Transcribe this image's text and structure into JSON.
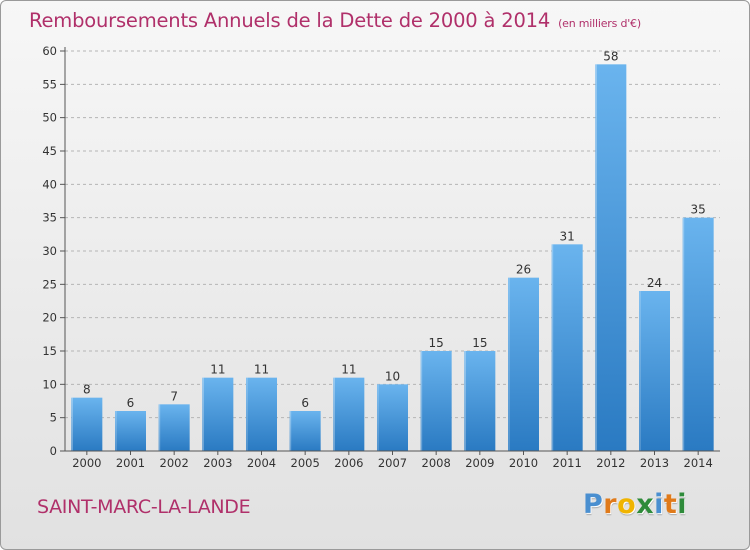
{
  "title": "Remboursements Annuels de la Dette de 2000 à 2014",
  "subtitle": "(en milliers d'€)",
  "commune": "SAINT-MARC-LA-LANDE",
  "logo": {
    "letters": [
      {
        "char": "P",
        "color": "#4a8fd0"
      },
      {
        "char": "r",
        "color": "#e07a1a"
      },
      {
        "char": "o",
        "color": "#f0b400"
      },
      {
        "char": "x",
        "color": "#2e8b3a"
      },
      {
        "char": "i",
        "color": "#4a8fd0"
      },
      {
        "char": "t",
        "color": "#e07a1a"
      },
      {
        "char": "i",
        "color": "#2e8b3a"
      }
    ]
  },
  "colors": {
    "title": "#b0306a",
    "bar_top": "#6ab4ee",
    "bar_bottom": "#2a7ac2",
    "grid": "#b5b5b5",
    "axis": "#555555"
  },
  "chart_data": {
    "type": "bar",
    "title": "Remboursements Annuels de la Dette de 2000 à 2014",
    "subtitle": "(en milliers d'€)",
    "categories": [
      "2000",
      "2001",
      "2002",
      "2003",
      "2004",
      "2005",
      "2006",
      "2007",
      "2008",
      "2009",
      "2010",
      "2011",
      "2012",
      "2013",
      "2014"
    ],
    "values": [
      8,
      6,
      7,
      11,
      11,
      6,
      11,
      10,
      15,
      15,
      26,
      31,
      58,
      24,
      35
    ],
    "ylim": [
      0,
      60
    ],
    "yticks": [
      0,
      5,
      10,
      15,
      20,
      25,
      30,
      35,
      40,
      45,
      50,
      55,
      60
    ],
    "grid": true,
    "data_labels": true
  }
}
